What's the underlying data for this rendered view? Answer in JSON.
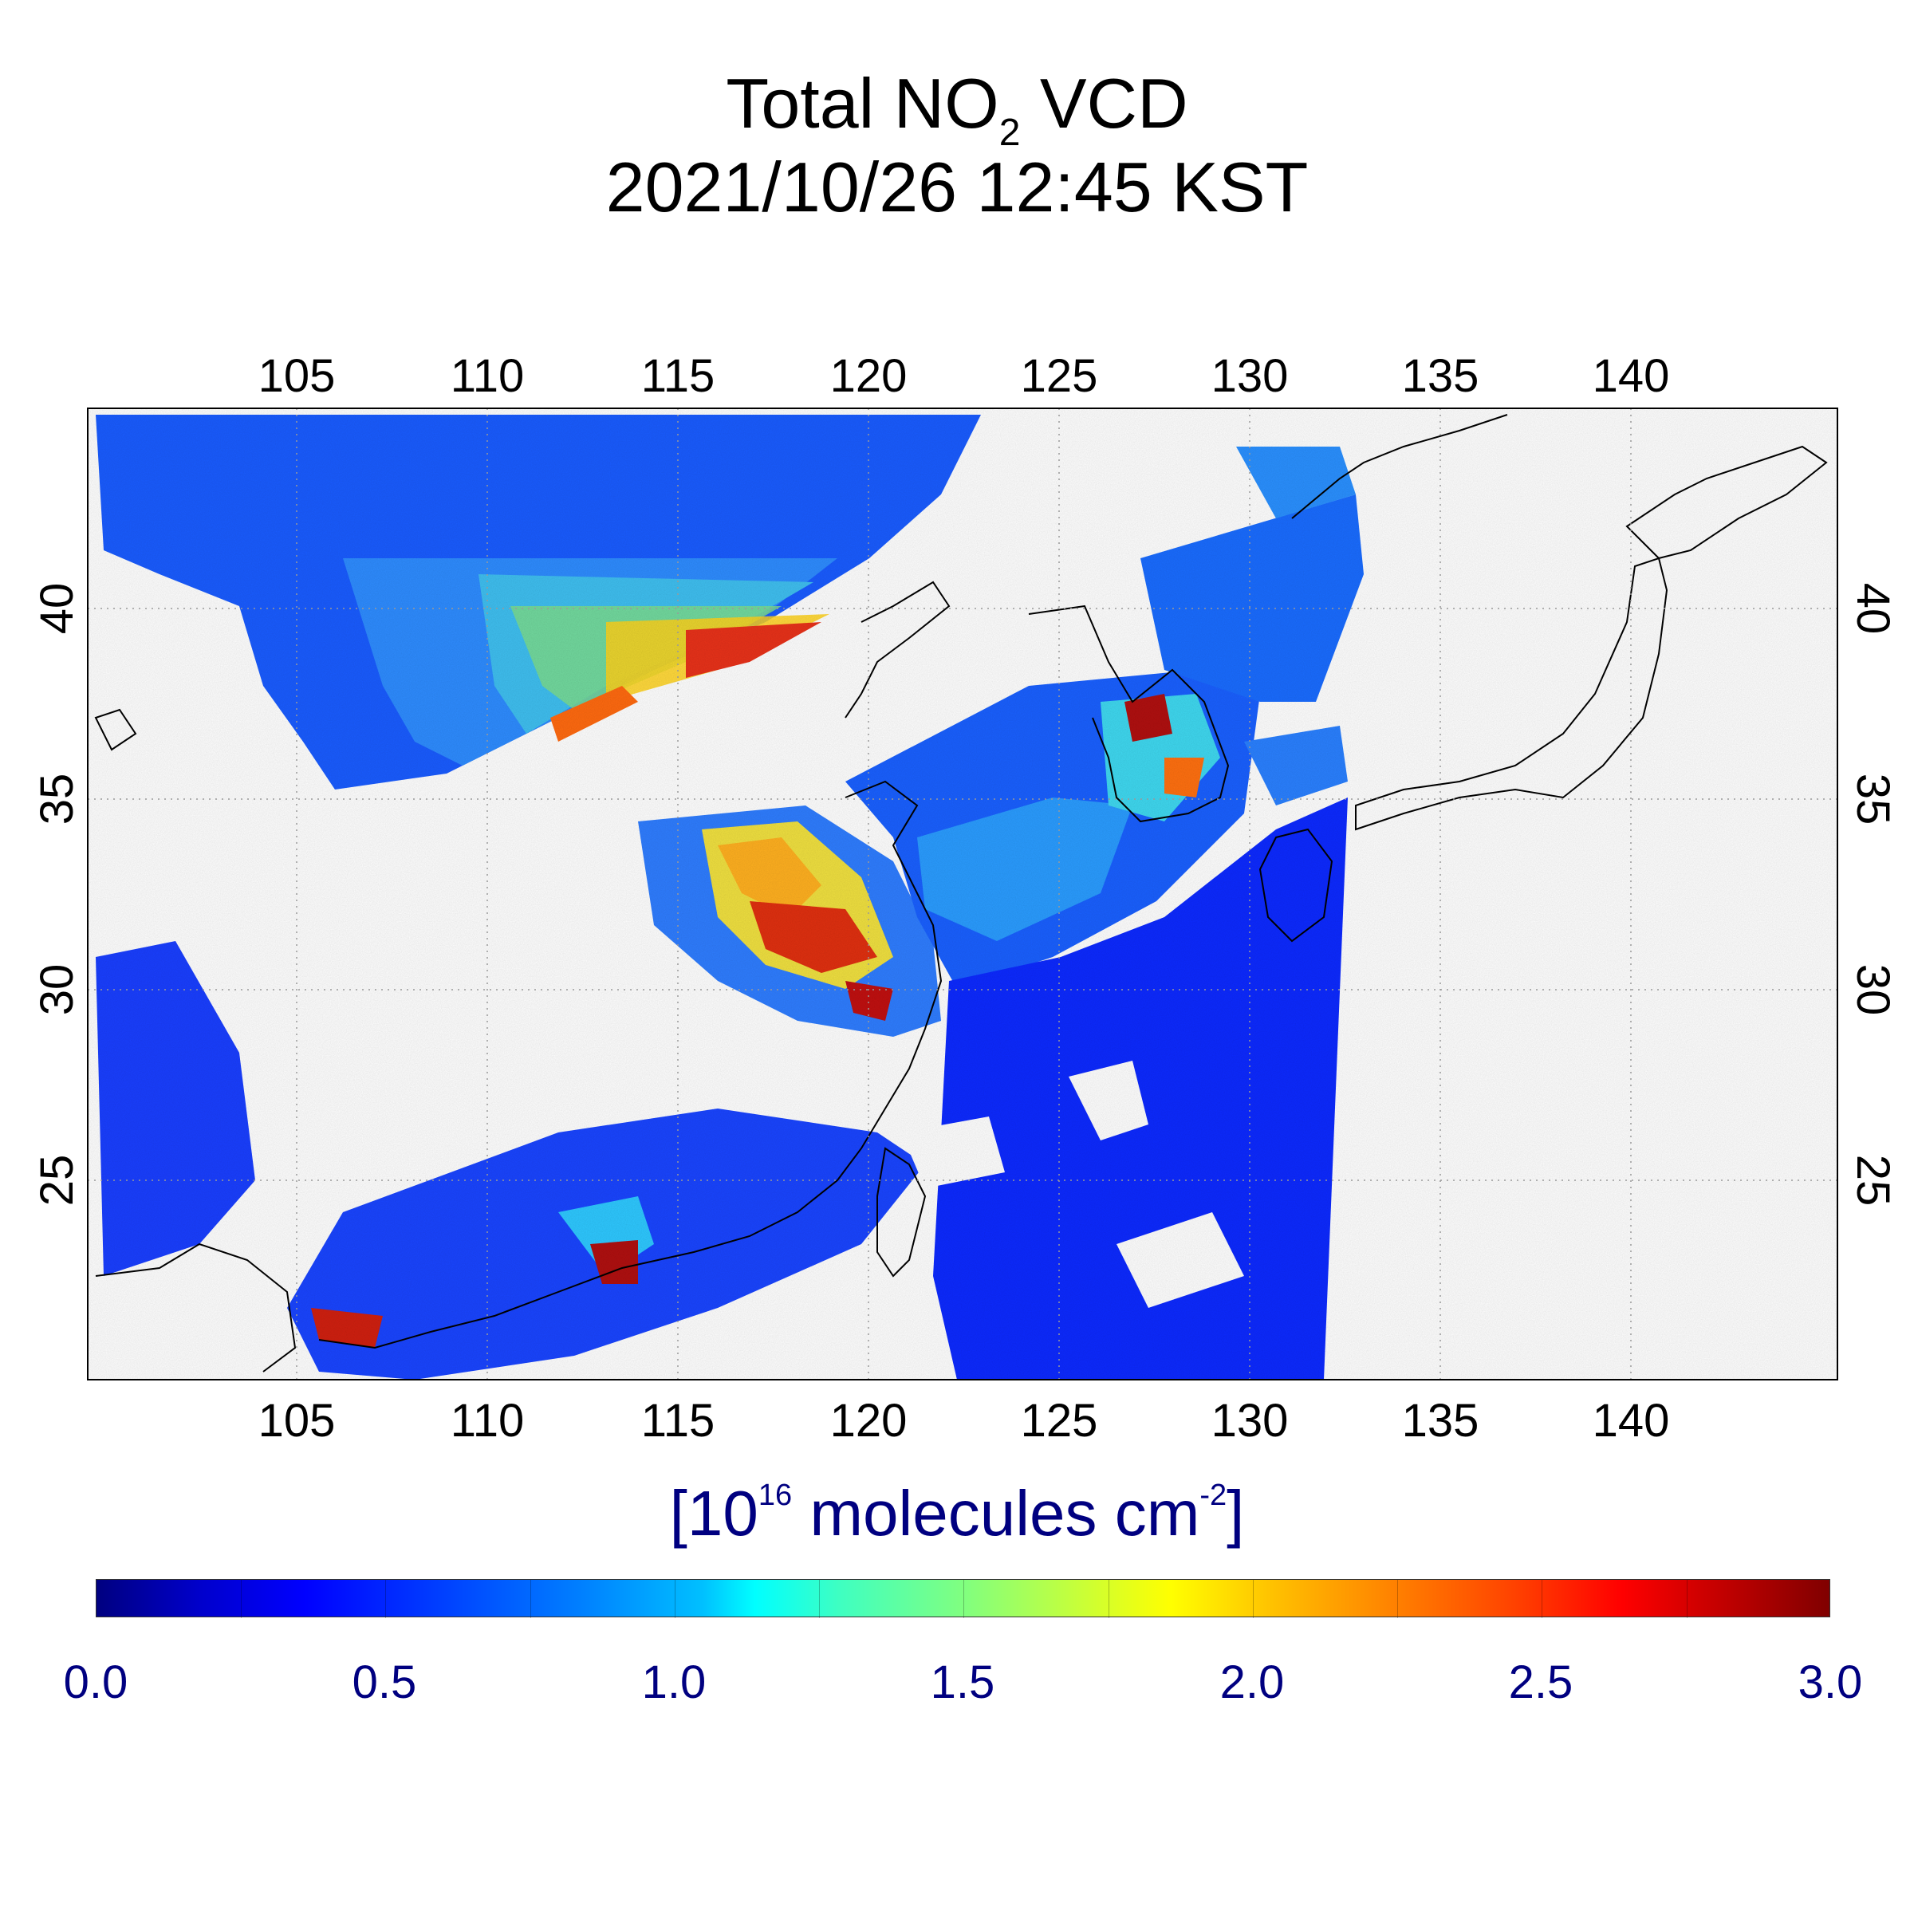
{
  "title": {
    "line1_prefix": "Total NO",
    "line1_sub": "2",
    "line1_suffix": " VCD",
    "line2": "2021/10/26 12:45 KST"
  },
  "map": {
    "lon_range": [
      99.5,
      145.5
    ],
    "lat_range": [
      19.5,
      45.0
    ],
    "lon_ticks": [
      "105",
      "110",
      "115",
      "120",
      "125",
      "130",
      "135",
      "140"
    ],
    "lat_ticks": [
      "40",
      "35",
      "30",
      "25"
    ],
    "grid": true
  },
  "colorbar": {
    "unit_prefix": "[10",
    "unit_sup1": "16",
    "unit_mid": " molecules cm",
    "unit_sup2": "-2",
    "unit_suffix": "]",
    "range": [
      0.0,
      3.0
    ],
    "labels": [
      "0.0",
      "0.5",
      "1.0",
      "1.5",
      "2.0",
      "2.5",
      "3.0"
    ],
    "colors": {
      "low": "#000080",
      "mid": "#00ffff",
      "high": "#800000",
      "label_color": "#000080"
    }
  }
}
